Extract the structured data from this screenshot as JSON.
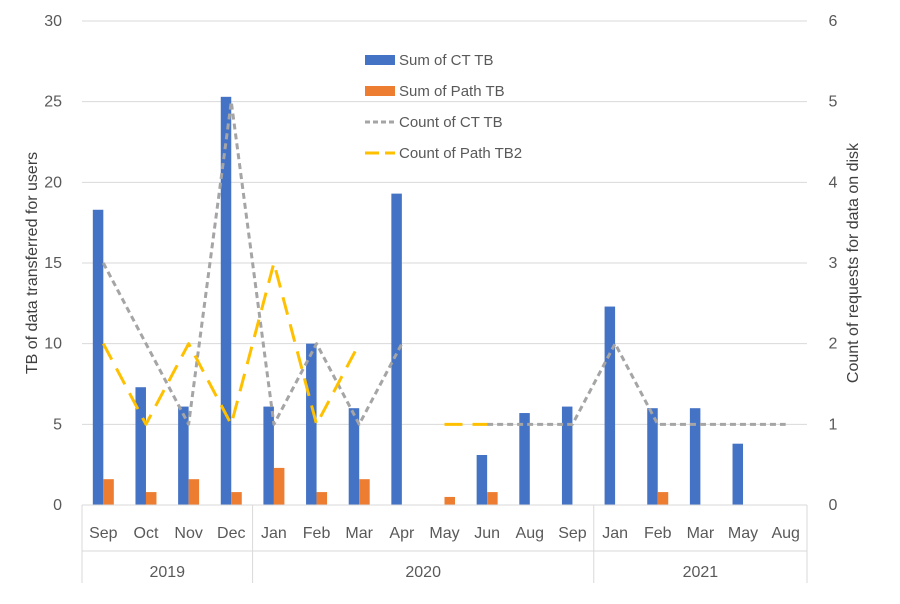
{
  "chart_data": {
    "type": "bar",
    "categories": [
      "Sep",
      "Oct",
      "Nov",
      "Dec",
      "Jan",
      "Feb",
      "Mar",
      "Apr",
      "May",
      "Jun",
      "Aug",
      "Sep",
      "Jan",
      "Feb",
      "Mar",
      "May",
      "Aug"
    ],
    "year_groups": [
      {
        "label": "2019",
        "start": 0,
        "end": 3
      },
      {
        "label": "2020",
        "start": 4,
        "end": 11
      },
      {
        "label": "2021",
        "start": 12,
        "end": 16
      }
    ],
    "series": [
      {
        "name": "Sum of CT TB",
        "kind": "bar",
        "axis": "left",
        "color": "#4472C4",
        "values": [
          18.3,
          7.3,
          6.1,
          25.3,
          6.1,
          10.0,
          6.0,
          19.3,
          null,
          3.1,
          5.7,
          6.1,
          12.3,
          6.0,
          6.0,
          3.8,
          null
        ]
      },
      {
        "name": "Sum of Path TB",
        "kind": "bar",
        "axis": "left",
        "color": "#ED7D31",
        "values": [
          1.6,
          0.8,
          1.6,
          0.8,
          2.3,
          0.8,
          1.6,
          null,
          0.5,
          0.8,
          null,
          null,
          null,
          0.8,
          null,
          null,
          null
        ]
      },
      {
        "name": "Count of CT TB",
        "kind": "line",
        "axis": "right",
        "style": "dashed",
        "color": "#A5A5A5",
        "values": [
          3,
          2,
          1,
          5,
          1,
          2,
          1,
          2,
          null,
          1,
          1,
          1,
          2,
          1,
          1,
          1,
          1
        ]
      },
      {
        "name": "Count of Path TB2",
        "kind": "line",
        "axis": "right",
        "style": "long-dash",
        "color": "#FFC000",
        "values": [
          2,
          1,
          2,
          1,
          3,
          1,
          2,
          null,
          1,
          1,
          null,
          null,
          null,
          null,
          null,
          null,
          null
        ]
      }
    ],
    "ylabel": "TB of data transferred  for users",
    "y2label": "Count of requests for data on disk",
    "ylim": [
      0,
      30
    ],
    "yticks": [
      "0",
      "5",
      "10",
      "15",
      "20",
      "25",
      "30"
    ],
    "y2lim": [
      0,
      6
    ],
    "y2ticks": [
      "0",
      "1",
      "2",
      "3",
      "4",
      "5",
      "6"
    ],
    "legend_position": "top-center",
    "grid": true
  }
}
